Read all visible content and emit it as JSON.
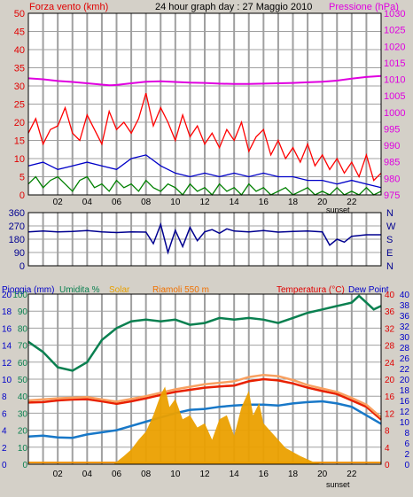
{
  "header": {
    "left_label": "Forza vento (kmh)",
    "title": "24 hour graph day : 27 Maggio 2010",
    "right_label": "Pressione (hPa)"
  },
  "middle": {
    "compass_labels": [
      "N",
      "W",
      "S",
      "E",
      "N"
    ]
  },
  "bottom_header": {
    "rain_label": "Pioggia (mm)",
    "humidity_label": "Umidita %",
    "solar_label": "Solar",
    "location_label": "Riamoli 550 m",
    "temp_label": "Temperatura (°C)",
    "dew_label": "Dew Point"
  },
  "sunset_label": "sunset",
  "colors": {
    "background": "#d4d0c8",
    "plot_bg": "#ffffff",
    "grid": "#a0a0a0",
    "wind_gust": "#ff0000",
    "wind_avg": "#0000c8",
    "wind_green": "#008000",
    "pressure": "#e000e0",
    "direction": "#000090",
    "humidity": "#0a8050",
    "solar": "#eba000",
    "temperature": "#e82000",
    "apparent": "#f8a060",
    "dewpoint": "#1878c8",
    "left_axis": "#e00000",
    "right_axis": "#e000e0"
  },
  "chart_data": [
    {
      "type": "line",
      "title": "24 hour graph day : 27 Maggio 2010",
      "x_tick_labels": [
        "02",
        "04",
        "06",
        "08",
        "10",
        "12",
        "14",
        "16",
        "18",
        "20",
        "22"
      ],
      "xlim": [
        0,
        24
      ],
      "y_left": {
        "label": "Forza vento (kmh)",
        "ylim": [
          0,
          50
        ],
        "ticks": [
          "0",
          "5",
          "10",
          "15",
          "20",
          "25",
          "30",
          "35",
          "40",
          "45",
          "50"
        ]
      },
      "y_right": {
        "label": "Pressione (hPa)",
        "ylim": [
          975,
          1030
        ],
        "ticks": [
          "975",
          "980",
          "985",
          "990",
          "995",
          "1000",
          "1005",
          "1010",
          "1015",
          "1020",
          "1025",
          "1030"
        ]
      },
      "grid": true,
      "series": [
        {
          "axis": "right",
          "color": "#e000e0",
          "x": [
            0,
            1,
            2,
            3,
            4,
            5,
            5.5,
            6,
            7,
            8,
            9,
            10,
            11,
            12,
            13,
            14,
            15,
            16,
            17,
            18,
            19,
            20,
            21,
            22,
            23,
            24
          ],
          "y": [
            1010.3,
            1010.0,
            1009.5,
            1009.2,
            1008.8,
            1008.4,
            1008.2,
            1008.3,
            1008.8,
            1009.3,
            1009.4,
            1009.2,
            1009.0,
            1008.9,
            1008.7,
            1008.6,
            1008.6,
            1008.7,
            1008.8,
            1008.9,
            1009.1,
            1009.3,
            1009.6,
            1010.2,
            1010.7,
            1011.0
          ]
        },
        {
          "color": "#ff0000",
          "x": [
            0,
            0.5,
            1,
            1.5,
            2,
            2.5,
            3,
            3.5,
            4,
            4.5,
            5,
            5.5,
            6,
            6.5,
            7,
            7.5,
            8,
            8.5,
            9,
            9.5,
            10,
            10.5,
            11,
            11.5,
            12,
            12.5,
            13,
            13.5,
            14,
            14.5,
            15,
            15.5,
            16,
            16.5,
            17,
            17.5,
            18,
            18.5,
            19,
            19.5,
            20,
            20.5,
            21,
            21.5,
            22,
            22.5,
            23,
            23.5,
            24
          ],
          "y": [
            17,
            21,
            14,
            18,
            19,
            24,
            17,
            15,
            22,
            18,
            14,
            23,
            18,
            20,
            17,
            21,
            28,
            19,
            24,
            20,
            15,
            22,
            16,
            19,
            14,
            17,
            13,
            18,
            15,
            20,
            12,
            16,
            18,
            11,
            15,
            10,
            13,
            9,
            14,
            8,
            11,
            7,
            10,
            6,
            9,
            5,
            11,
            4,
            6
          ]
        },
        {
          "color": "#0000c8",
          "x": [
            0,
            1,
            2,
            3,
            4,
            5,
            6,
            7,
            8,
            9,
            10,
            11,
            12,
            13,
            14,
            15,
            16,
            17,
            18,
            19,
            20,
            21,
            22,
            23,
            24
          ],
          "y": [
            8,
            9,
            7,
            8,
            9,
            8,
            7,
            10,
            11,
            8,
            6,
            5,
            6,
            5,
            6,
            5,
            6,
            5,
            5,
            4,
            4,
            3,
            4,
            3,
            2
          ]
        },
        {
          "color": "#008000",
          "x": [
            0,
            0.5,
            1,
            1.5,
            2,
            2.5,
            3,
            3.5,
            4,
            4.5,
            5,
            5.5,
            6,
            6.5,
            7,
            7.5,
            8,
            8.5,
            9,
            9.5,
            10,
            10.5,
            11,
            11.5,
            12,
            12.5,
            13,
            13.5,
            14,
            14.5,
            15,
            15.5,
            16,
            16.5,
            17,
            17.5,
            18,
            18.5,
            19,
            19.5,
            20,
            20.5,
            21,
            21.5,
            22,
            22.5,
            23,
            23.5,
            24
          ],
          "y": [
            3,
            5,
            2,
            4,
            5,
            3,
            1,
            4,
            5,
            2,
            3,
            1,
            4,
            2,
            3,
            1,
            4,
            2,
            1,
            3,
            2,
            0,
            3,
            1,
            2,
            0,
            3,
            1,
            2,
            0,
            3,
            1,
            2,
            0,
            1,
            2,
            0,
            1,
            2,
            0,
            1,
            0,
            2,
            0,
            1,
            0,
            2,
            0,
            1
          ]
        }
      ]
    },
    {
      "type": "line",
      "title": "",
      "xlim": [
        0,
        24
      ],
      "y_left": {
        "ylim": [
          0,
          360
        ],
        "ticks": [
          "360",
          "270",
          "180",
          "90",
          "0"
        ]
      },
      "y_right_labels": [
        "N",
        "W",
        "S",
        "E",
        "N"
      ],
      "series": [
        {
          "color": "#000090",
          "x": [
            0,
            1,
            2,
            3,
            4,
            5,
            6,
            7,
            8,
            8.5,
            9,
            9.5,
            10,
            10.5,
            11,
            11.5,
            12,
            12.5,
            13,
            13.5,
            14,
            15,
            16,
            17,
            18,
            19,
            20,
            20.5,
            21,
            21.5,
            22,
            23,
            24
          ],
          "y": [
            230,
            235,
            230,
            232,
            238,
            230,
            225,
            230,
            228,
            150,
            280,
            90,
            240,
            130,
            260,
            170,
            230,
            245,
            220,
            250,
            235,
            230,
            238,
            228,
            232,
            235,
            230,
            140,
            180,
            160,
            200,
            210,
            210
          ]
        }
      ]
    },
    {
      "type": "line",
      "title": "",
      "x_tick_labels": [
        "02",
        "04",
        "06",
        "08",
        "10",
        "12",
        "14",
        "16",
        "18",
        "20",
        "22"
      ],
      "xlim": [
        0,
        24
      ],
      "y_axes": [
        {
          "label": "Pioggia (mm)",
          "ticks": [
            "0",
            "2",
            "4",
            "6",
            "8",
            "10",
            "12",
            "14",
            "16",
            "18",
            "20"
          ]
        },
        {
          "label": "Umidita %",
          "ticks": [
            "0",
            "10",
            "20",
            "30",
            "40",
            "50",
            "60",
            "70",
            "80",
            "90",
            "100"
          ]
        },
        {
          "label": "Temperatura (°C)",
          "ticks": [
            "0",
            "4",
            "8",
            "12",
            "16",
            "20",
            "24",
            "28",
            "32",
            "36",
            "40"
          ]
        },
        {
          "label": "Dew Point",
          "ticks": [
            "0",
            "2",
            "6",
            "8",
            "10",
            "12",
            "16",
            "18",
            "20",
            "22",
            "26",
            "28",
            "30",
            "32",
            "36",
            "38",
            "40"
          ]
        }
      ],
      "grid": true,
      "series": [
        {
          "axis": "humidity",
          "color": "#0a8050",
          "x": [
            0,
            1,
            2,
            3,
            4,
            5,
            6,
            7,
            8,
            9,
            10,
            11,
            12,
            13,
            14,
            15,
            16,
            17,
            18,
            19,
            20,
            21,
            22,
            22.5,
            23,
            23.5,
            24
          ],
          "y": [
            72,
            66,
            57,
            55,
            60,
            73,
            80,
            84,
            85,
            84,
            85,
            82,
            83,
            86,
            85,
            86,
            85,
            83,
            86,
            89,
            91,
            93,
            95,
            99,
            95,
            91,
            93
          ]
        },
        {
          "axis": "temperature",
          "color": "#e82000",
          "x": [
            0,
            1,
            2,
            3,
            4,
            5,
            6,
            7,
            8,
            9,
            10,
            11,
            12,
            13,
            14,
            15,
            16,
            17,
            18,
            19,
            20,
            21,
            22,
            23,
            24
          ],
          "y": [
            14.5,
            14.6,
            15,
            15.2,
            15.3,
            14.8,
            14.2,
            14.8,
            15.5,
            16.3,
            17,
            17.5,
            18,
            18.3,
            18.5,
            19.5,
            20,
            19.7,
            19,
            18,
            17.2,
            16.5,
            15,
            13.5,
            10.5
          ]
        },
        {
          "axis": "temperature",
          "color": "#f8a060",
          "x": [
            0,
            2,
            4,
            6,
            8,
            10,
            12,
            14,
            15,
            16,
            17,
            18,
            19,
            20,
            21,
            22,
            23,
            24
          ],
          "y": [
            15,
            15.5,
            15.8,
            14.7,
            16,
            17.6,
            18.8,
            19.5,
            20.5,
            21,
            20.7,
            19.8,
            18.6,
            17.8,
            17,
            15.6,
            14,
            11
          ]
        },
        {
          "axis": "dewpoint",
          "color": "#1878c8",
          "x": [
            0,
            1,
            2,
            3,
            4,
            5,
            6,
            7,
            8,
            9,
            10,
            11,
            12,
            13,
            14,
            15,
            16,
            17,
            18,
            19,
            20,
            21,
            22,
            23,
            24
          ],
          "y": [
            6.5,
            6.7,
            6.3,
            6.2,
            7,
            7.5,
            8,
            9,
            10,
            11,
            12,
            12.8,
            13,
            13.5,
            13.8,
            14,
            14,
            13.8,
            14.3,
            14.6,
            14.8,
            14.3,
            13.5,
            11.5,
            9.5
          ]
        },
        {
          "axis": "rain",
          "color": "#f09000",
          "x": [
            0,
            24
          ],
          "y": [
            0.2,
            0.2
          ]
        },
        {
          "axis": "solar",
          "color": "#eba000",
          "type": "area",
          "x": [
            5.8,
            6.5,
            7,
            7.5,
            8,
            8.5,
            9,
            9.3,
            9.6,
            10,
            10.5,
            11,
            11.5,
            12,
            12.5,
            13,
            13.5,
            14,
            14.5,
            15,
            15.3,
            15.7,
            16,
            16.5,
            17,
            17.5,
            18,
            18.5,
            19,
            19.5,
            20
          ],
          "y": [
            0,
            0.1,
            0.18,
            0.3,
            0.4,
            0.6,
            0.85,
            0.95,
            0.7,
            0.8,
            0.55,
            0.6,
            0.45,
            0.5,
            0.3,
            0.55,
            0.6,
            0.35,
            0.7,
            0.9,
            0.6,
            0.75,
            0.5,
            0.4,
            0.3,
            0.2,
            0.15,
            0.1,
            0.06,
            0.02,
            0
          ]
        }
      ]
    }
  ]
}
